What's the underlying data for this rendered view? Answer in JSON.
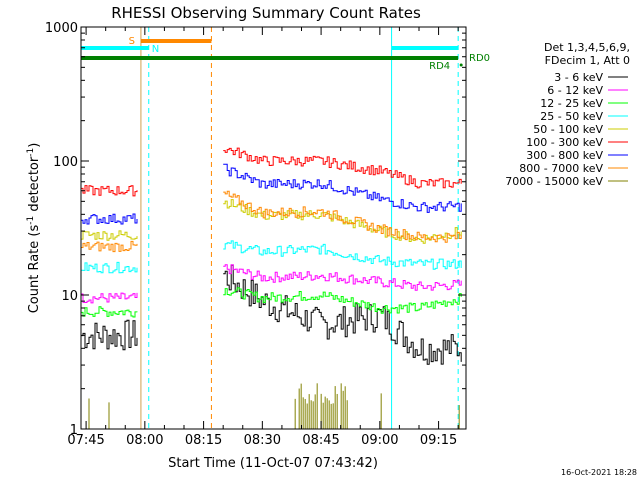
{
  "chart_data": {
    "type": "line",
    "title": "RHESSI Observing Summary Count Rates",
    "xlabel": "Start Time (11-Oct-07 07:43:42)",
    "ylabel_main": "Count Rate (s",
    "ylabel_sup1": "-1",
    "ylabel_mid": " detector",
    "ylabel_sup2": "-1",
    "ylabel_end": ")",
    "yscale": "log",
    "ylim": [
      1,
      1000
    ],
    "xlim": [
      "07:43:42",
      "09:22:00"
    ],
    "x_ticks": [
      "07:45",
      "08:00",
      "08:15",
      "08:30",
      "08:45",
      "09:00",
      "09:15"
    ],
    "y_ticks": [
      "1",
      "10",
      "100",
      "1000"
    ],
    "legend_header": [
      "Det 1,3,4,5,6,9,",
      "FDecim 1, Att 0"
    ],
    "series": [
      {
        "name": "3 - 6 keV",
        "color": "#000000",
        "values": [
          [
            5,
            5,
            5
          ],
          [
            14,
            9,
            6,
            7,
            4,
            4
          ]
        ]
      },
      {
        "name": "6 - 12 keV",
        "color": "#ff00ff",
        "values": [
          [
            9.5,
            9.5,
            9.5
          ],
          [
            16,
            13.5,
            14,
            12.5,
            11.5,
            12
          ]
        ]
      },
      {
        "name": "12 - 25 keV",
        "color": "#00ff00",
        "values": [
          [
            7.5,
            7.5,
            7.5
          ],
          [
            11,
            9.5,
            10,
            8,
            8,
            9.5
          ]
        ]
      },
      {
        "name": "25 - 50 keV",
        "color": "#00ffff",
        "values": [
          [
            16,
            16,
            16
          ],
          [
            24,
            21,
            22,
            18,
            17,
            17
          ]
        ]
      },
      {
        "name": "50 - 100 keV",
        "color": "#cccc00",
        "values": [
          [
            28,
            28,
            28
          ],
          [
            50,
            39,
            40,
            30,
            26,
            30
          ]
        ]
      },
      {
        "name": "100 - 300 keV",
        "color": "#ff0000",
        "values": [
          [
            60,
            60,
            60
          ],
          [
            125,
            100,
            100,
            84,
            68,
            68
          ]
        ]
      },
      {
        "name": "300 - 800 keV",
        "color": "#0000ff",
        "values": [
          [
            37,
            37,
            37
          ],
          [
            88,
            67,
            68,
            52,
            45,
            46
          ]
        ]
      },
      {
        "name": "800 - 7000 keV",
        "color": "#ff8800",
        "values": [
          [
            23,
            23,
            23
          ],
          [
            57,
            41,
            42,
            31,
            27,
            27
          ]
        ]
      },
      {
        "name": "7000 - 15000 keV",
        "color": "#808000",
        "values": [
          [
            0,
            0,
            0
          ],
          [
            0,
            0,
            2,
            0,
            0,
            0
          ]
        ]
      }
    ],
    "segment_times": [
      [
        "07:43:42",
        "07:51:00",
        "07:58:00"
      ],
      [
        "08:20:00",
        "08:30:00",
        "08:45:00",
        "09:00:00",
        "09:10:00",
        "09:21:00"
      ]
    ],
    "markers": {
      "vlines": [
        {
          "time": "07:43:42",
          "color": "#00ffff",
          "style": "solid"
        },
        {
          "time": "07:59:00",
          "color": "#d0a050",
          "style": "solid"
        },
        {
          "time": "08:01:00",
          "color": "#00ffff",
          "style": "dashed"
        },
        {
          "time": "08:17:00",
          "color": "#ff8800",
          "style": "dashed"
        },
        {
          "time": "09:03:00",
          "color": "#00ffff",
          "style": "solid"
        },
        {
          "time": "09:20:00",
          "color": "#00ffff",
          "style": "dashed"
        }
      ],
      "bars": [
        {
          "label": "S",
          "from": "07:59:00",
          "to": "08:17:00",
          "color": "#ff8800"
        },
        {
          "label": "N",
          "from": "07:43:42",
          "to": "08:01:00",
          "color": "#00ffff"
        },
        {
          "label": "",
          "from": "09:03:00",
          "to": "09:20:00",
          "color": "#00ffff"
        },
        {
          "label": "RD4",
          "from": "07:43:42",
          "to": "09:20:00",
          "color": "#008000"
        }
      ],
      "rd0_label": "RD0"
    },
    "grid": false,
    "legend_position": "right"
  },
  "footer_timestamp": "16-Oct-2021 18:28"
}
